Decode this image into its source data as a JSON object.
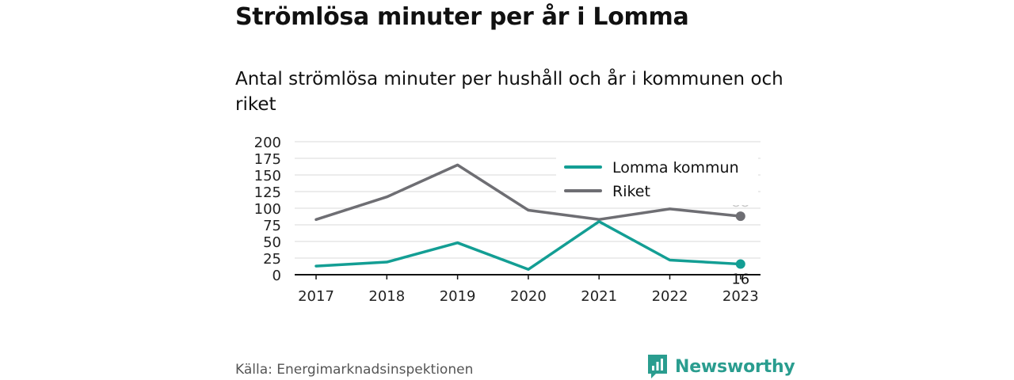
{
  "title": "Strömlösa minuter per år i Lomma",
  "subtitle": "Antal strömlösa minuter per hushåll och år i kommunen och riket",
  "source": "Källa: Energimarknadsinspektionen",
  "brand": "Newsworthy",
  "colors": {
    "lomma": "#139e94",
    "riket": "#6e6e73",
    "brand": "#2a9d8f"
  },
  "chart_data": {
    "type": "line",
    "categories": [
      "2017",
      "2018",
      "2019",
      "2020",
      "2021",
      "2022",
      "2023"
    ],
    "y_ticks": [
      "0",
      "25",
      "50",
      "75",
      "100",
      "125",
      "150",
      "175",
      "200"
    ],
    "ylim": [
      0,
      200
    ],
    "grid": true,
    "legend_position": "top-right",
    "series": [
      {
        "name": "Lomma kommun",
        "values": [
          13,
          19,
          48,
          8,
          80,
          22,
          16
        ],
        "end_label": "16"
      },
      {
        "name": "Riket",
        "values": [
          83,
          117,
          165,
          97,
          83,
          99,
          88
        ],
        "end_label": "88"
      }
    ]
  }
}
